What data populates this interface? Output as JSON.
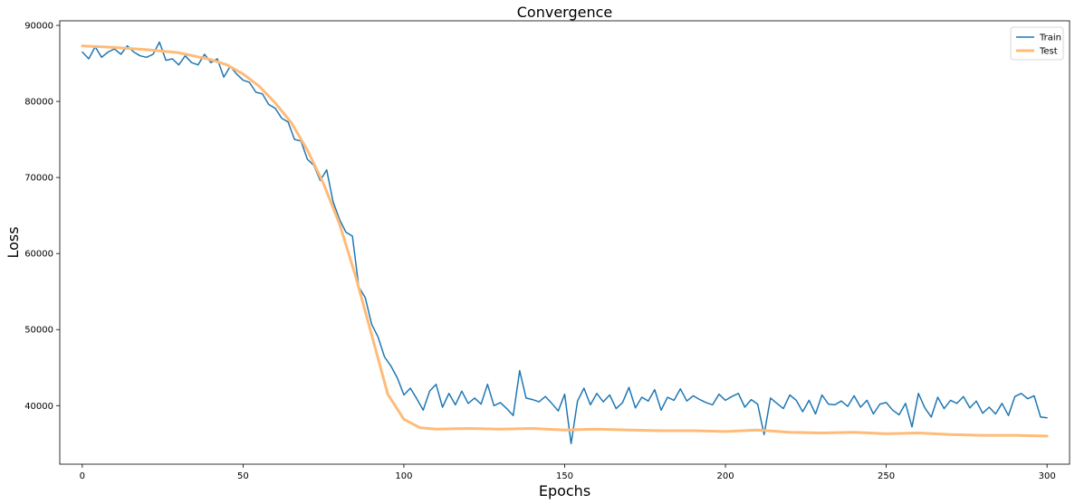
{
  "chart_data": {
    "type": "line",
    "title": "Convergence",
    "xlabel": "Epochs",
    "ylabel": "Loss",
    "xlim": [
      -7,
      307
    ],
    "ylim": [
      32300,
      90600
    ],
    "xticks": [
      0,
      50,
      100,
      150,
      200,
      250,
      300
    ],
    "yticks": [
      40000,
      50000,
      60000,
      70000,
      80000,
      90000
    ],
    "grid": false,
    "legend_position": "top-right",
    "series": [
      {
        "name": "Train",
        "color": "#1f77b4",
        "x": [
          0,
          2,
          4,
          6,
          8,
          10,
          12,
          14,
          16,
          18,
          20,
          22,
          24,
          26,
          28,
          30,
          32,
          34,
          36,
          38,
          40,
          42,
          44,
          46,
          48,
          50,
          52,
          54,
          56,
          58,
          60,
          62,
          64,
          66,
          68,
          70,
          72,
          74,
          76,
          78,
          80,
          82,
          84,
          86,
          88,
          90,
          92,
          94,
          96,
          98,
          100,
          102,
          104,
          106,
          108,
          110,
          112,
          114,
          116,
          118,
          120,
          122,
          124,
          126,
          128,
          130,
          132,
          134,
          136,
          138,
          140,
          142,
          144,
          146,
          148,
          150,
          152,
          154,
          156,
          158,
          160,
          162,
          164,
          166,
          168,
          170,
          172,
          174,
          176,
          178,
          180,
          182,
          184,
          186,
          188,
          190,
          192,
          194,
          196,
          198,
          200,
          202,
          204,
          206,
          208,
          210,
          212,
          214,
          216,
          218,
          220,
          222,
          224,
          226,
          228,
          230,
          232,
          234,
          236,
          238,
          240,
          242,
          244,
          246,
          248,
          250,
          252,
          254,
          256,
          258,
          260,
          262,
          264,
          266,
          268,
          270,
          272,
          274,
          276,
          278,
          280,
          282,
          284,
          286,
          288,
          290,
          292,
          294,
          296,
          298,
          300
        ],
        "values": [
          86500,
          85600,
          87200,
          85800,
          86500,
          86900,
          86200,
          87300,
          86500,
          86000,
          85800,
          86200,
          87800,
          85400,
          85600,
          84800,
          86000,
          85100,
          84800,
          86200,
          85100,
          85600,
          83200,
          84600,
          83600,
          82800,
          82500,
          81200,
          81000,
          79600,
          79100,
          77800,
          77300,
          75000,
          74800,
          72400,
          71600,
          69600,
          71000,
          66800,
          64500,
          62800,
          62300,
          55600,
          54200,
          50700,
          49000,
          46400,
          45200,
          43600,
          41400,
          42300,
          40900,
          39400,
          41900,
          42800,
          39800,
          41600,
          40100,
          41900,
          40300,
          41000,
          40200,
          42800,
          40000,
          40400,
          39600,
          38700,
          44600,
          41000,
          40800,
          40500,
          41200,
          40300,
          39300,
          41500,
          35000,
          40600,
          42300,
          40100,
          41600,
          40500,
          41400,
          39600,
          40400,
          42400,
          39700,
          41100,
          40600,
          42100,
          39400,
          41100,
          40700,
          42200,
          40600,
          41300,
          40800,
          40400,
          40100,
          41500,
          40700,
          41200,
          41600,
          39800,
          40800,
          40200,
          36200,
          41000,
          40300,
          39600,
          41400,
          40700,
          39200,
          40700,
          38900,
          41400,
          40200,
          40100,
          40600,
          39900,
          41300,
          39800,
          40700,
          38900,
          40200,
          40400,
          39400,
          38800,
          40300,
          37200,
          41600,
          39700,
          38500,
          41100,
          39600,
          40700,
          40300,
          41200,
          39700,
          40600,
          39000,
          39800,
          38900,
          40300,
          38700,
          41200,
          41600,
          40900,
          41300,
          38500,
          38400
        ],
        "line_width": 1.5
      },
      {
        "name": "Test",
        "color": "#ffbb78",
        "x": [
          0,
          10,
          20,
          30,
          40,
          45,
          50,
          55,
          60,
          65,
          70,
          75,
          80,
          85,
          90,
          95,
          100,
          105,
          110,
          120,
          130,
          140,
          150,
          160,
          170,
          180,
          190,
          200,
          210,
          220,
          230,
          240,
          250,
          260,
          270,
          280,
          290,
          300
        ],
        "values": [
          87300,
          87100,
          86800,
          86400,
          85500,
          84800,
          83600,
          82000,
          79800,
          77200,
          73600,
          69200,
          63900,
          57000,
          49300,
          41500,
          38200,
          37100,
          36900,
          37000,
          36900,
          37000,
          36800,
          36900,
          36800,
          36700,
          36700,
          36600,
          36800,
          36500,
          36400,
          36500,
          36300,
          36400,
          36200,
          36100,
          36100,
          36000
        ],
        "line_width": 3
      }
    ]
  }
}
